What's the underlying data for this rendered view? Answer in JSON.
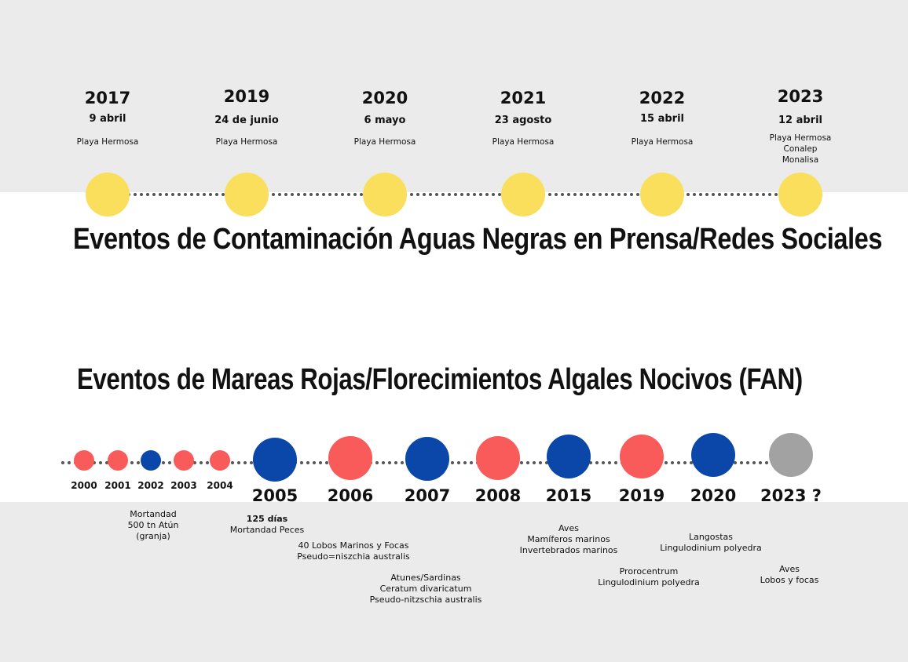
{
  "colors": {
    "yellow": "#f9df5c",
    "red": "#f95a5a",
    "blue": "#0a47a8",
    "gray": "#a2a2a2",
    "band": "#ebebeb"
  },
  "sewage": {
    "title": "Eventos de Contaminación Aguas Negras en Prensa/Redes Sociales",
    "events": [
      {
        "year": "2017",
        "date": "9 abril",
        "places": [
          "Playa Hermosa"
        ]
      },
      {
        "year": "2019",
        "date": "24 de junio",
        "places": [
          "Playa Hermosa"
        ]
      },
      {
        "year": "2020",
        "date": "6 mayo",
        "places": [
          "Playa Hermosa"
        ]
      },
      {
        "year": "2021",
        "date": "23 agosto",
        "places": [
          "Playa Hermosa"
        ]
      },
      {
        "year": "2022",
        "date": "15 abril",
        "places": [
          "Playa Hermosa"
        ]
      },
      {
        "year": "2023",
        "date": "12 abril",
        "places": [
          "Playa Hermosa",
          "Conalep",
          "Monalisa"
        ]
      }
    ]
  },
  "fan": {
    "title": "Eventos de Mareas Rojas/Florecimientos Algales Nocivos (FAN)",
    "events": [
      {
        "year": "2000",
        "color": "red",
        "size": "small"
      },
      {
        "year": "2001",
        "color": "red",
        "size": "small"
      },
      {
        "year": "2002",
        "color": "blue",
        "size": "small"
      },
      {
        "year": "2003",
        "color": "red",
        "size": "small"
      },
      {
        "year": "2004",
        "color": "red",
        "size": "small"
      },
      {
        "year": "2005",
        "color": "blue",
        "size": "large"
      },
      {
        "year": "2006",
        "color": "red",
        "size": "large"
      },
      {
        "year": "2007",
        "color": "blue",
        "size": "large"
      },
      {
        "year": "2008",
        "color": "red",
        "size": "large"
      },
      {
        "year": "2015",
        "color": "blue",
        "size": "large"
      },
      {
        "year": "2019",
        "color": "red",
        "size": "large"
      },
      {
        "year": "2020",
        "color": "blue",
        "size": "large"
      },
      {
        "year": "2023 ?",
        "color": "gray",
        "size": "large"
      }
    ],
    "notes": [
      {
        "lines": [
          "Mortandad",
          "500 tn Atún",
          "(granja)"
        ]
      },
      {
        "lines": [
          "125 días",
          "Mortandad Peces"
        ],
        "bold_first": true
      },
      {
        "lines": [
          "40 Lobos Marinos y Focas",
          "Pseudo=niszchia australis"
        ]
      },
      {
        "lines": [
          "Atunes/Sardinas",
          "Ceratum divaricatum",
          "Pseudo-nitzschia australis"
        ]
      },
      {
        "lines": [
          "Aves",
          "Mamíferos marinos",
          "Invertebrados marinos"
        ]
      },
      {
        "lines": [
          "Prorocentrum",
          "Lingulodinium polyedra"
        ]
      },
      {
        "lines": [
          "Langostas",
          "Lingulodinium polyedra"
        ]
      },
      {
        "lines": [
          "Aves",
          "Lobos y focas"
        ]
      }
    ]
  }
}
